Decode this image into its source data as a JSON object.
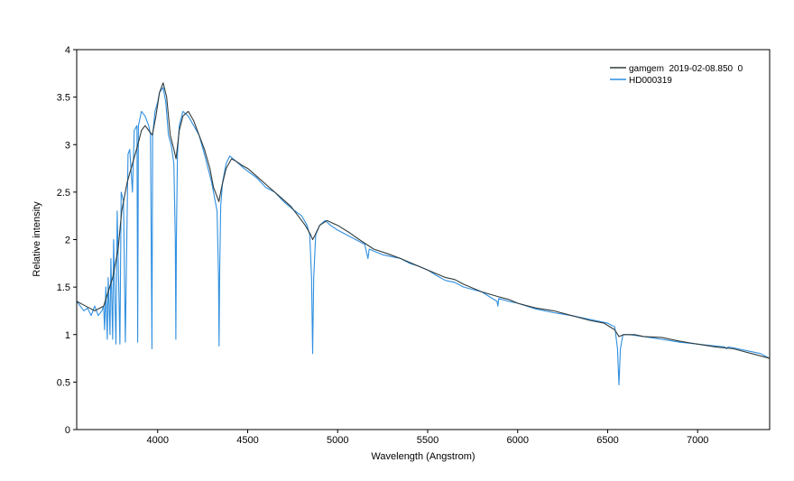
{
  "chart_data": {
    "type": "line",
    "xlabel": "Wavelength (Angstrom)",
    "ylabel": "Relative intensity",
    "xlim": [
      3550,
      7400
    ],
    "ylim": [
      0,
      4
    ],
    "x_ticks": [
      4000,
      4500,
      5000,
      5500,
      6000,
      6500,
      7000
    ],
    "x_tick_labels": [
      "4000",
      "4500",
      "5000",
      "5500",
      "6000",
      "6500",
      "7000"
    ],
    "y_ticks": [
      0,
      0.5,
      1,
      1.5,
      2,
      2.5,
      3,
      3.5,
      4
    ],
    "y_tick_labels": [
      "0",
      "0.5",
      "1",
      "1.5",
      "2",
      "2.5",
      "3",
      "3.5",
      "4"
    ],
    "grid": false,
    "legend_position": "top-right",
    "series": [
      {
        "name": "gamgem  2019-02-08.850  0",
        "color": "#2f3b3b",
        "x": [
          3550,
          3600,
          3650,
          3700,
          3750,
          3780,
          3800,
          3830,
          3860,
          3890,
          3910,
          3930,
          3950,
          3970,
          3990,
          4010,
          4030,
          4050,
          4070,
          4090,
          4102,
          4120,
          4140,
          4170,
          4200,
          4230,
          4260,
          4290,
          4310,
          4330,
          4340,
          4355,
          4380,
          4410,
          4440,
          4470,
          4500,
          4560,
          4620,
          4680,
          4740,
          4780,
          4820,
          4850,
          4861,
          4875,
          4900,
          4940,
          5000,
          5060,
          5120,
          5200,
          5280,
          5350,
          5400,
          5500,
          5600,
          5650,
          5700,
          5800,
          5890,
          5950,
          6000,
          6100,
          6200,
          6300,
          6400,
          6480,
          6540,
          6563,
          6590,
          6650,
          6700,
          6800,
          6900,
          7000,
          7100,
          7200,
          7300,
          7400
        ],
        "y": [
          1.35,
          1.3,
          1.25,
          1.3,
          1.6,
          1.9,
          2.3,
          2.6,
          2.8,
          3.0,
          3.15,
          3.2,
          3.15,
          3.1,
          3.3,
          3.55,
          3.65,
          3.5,
          3.1,
          2.95,
          2.85,
          3.15,
          3.3,
          3.35,
          3.25,
          3.1,
          2.95,
          2.75,
          2.55,
          2.45,
          2.4,
          2.55,
          2.75,
          2.85,
          2.82,
          2.78,
          2.75,
          2.65,
          2.55,
          2.45,
          2.35,
          2.25,
          2.15,
          2.05,
          2.0,
          2.05,
          2.15,
          2.2,
          2.15,
          2.08,
          2.0,
          1.9,
          1.85,
          1.8,
          1.76,
          1.68,
          1.6,
          1.58,
          1.53,
          1.45,
          1.4,
          1.37,
          1.33,
          1.28,
          1.25,
          1.2,
          1.15,
          1.12,
          1.05,
          0.98,
          1.0,
          1.0,
          0.98,
          0.97,
          0.93,
          0.9,
          0.87,
          0.85,
          0.8,
          0.75
        ]
      },
      {
        "name": "HD000319",
        "color": "#2f8fe0",
        "x": [
          3550,
          3570,
          3590,
          3610,
          3630,
          3650,
          3670,
          3690,
          3700,
          3705,
          3712,
          3720,
          3725,
          3735,
          3740,
          3750,
          3755,
          3768,
          3775,
          3790,
          3797,
          3810,
          3820,
          3835,
          3845,
          3860,
          3870,
          3885,
          3889,
          3893,
          3910,
          3930,
          3950,
          3960,
          3968,
          3972,
          3985,
          4000,
          4010,
          4030,
          4045,
          4060,
          4075,
          4090,
          4098,
          4101,
          4104,
          4110,
          4120,
          4140,
          4170,
          4200,
          4230,
          4260,
          4280,
          4300,
          4315,
          4330,
          4338,
          4341,
          4344,
          4350,
          4360,
          4380,
          4400,
          4420,
          4450,
          4480,
          4500,
          4550,
          4600,
          4650,
          4700,
          4750,
          4800,
          4830,
          4845,
          4855,
          4861,
          4867,
          4878,
          4900,
          4930,
          4960,
          5000,
          5050,
          5100,
          5150,
          5168,
          5175,
          5200,
          5250,
          5300,
          5350,
          5400,
          5450,
          5500,
          5550,
          5600,
          5650,
          5700,
          5800,
          5885,
          5890,
          5895,
          5950,
          6000,
          6100,
          6200,
          6300,
          6400,
          6500,
          6540,
          6555,
          6563,
          6571,
          6585,
          6620,
          6700,
          6800,
          6900,
          7000,
          7100,
          7150,
          7160,
          7170,
          7200,
          7300,
          7350,
          7400
        ],
        "y": [
          1.35,
          1.3,
          1.25,
          1.28,
          1.2,
          1.3,
          1.2,
          1.25,
          1.3,
          1.05,
          1.5,
          0.95,
          1.6,
          1.0,
          1.8,
          0.95,
          2.0,
          0.9,
          2.3,
          0.9,
          2.5,
          2.4,
          0.92,
          2.9,
          2.95,
          2.5,
          3.15,
          3.2,
          0.92,
          3.2,
          3.35,
          3.3,
          3.2,
          3.1,
          0.85,
          3.1,
          3.35,
          3.45,
          3.55,
          3.6,
          3.45,
          3.1,
          3.0,
          2.8,
          2.0,
          0.95,
          2.0,
          2.9,
          3.2,
          3.35,
          3.3,
          3.2,
          3.1,
          2.9,
          2.75,
          2.6,
          2.45,
          2.3,
          1.6,
          0.88,
          1.6,
          2.35,
          2.6,
          2.8,
          2.88,
          2.85,
          2.8,
          2.75,
          2.72,
          2.65,
          2.55,
          2.5,
          2.4,
          2.32,
          2.25,
          2.15,
          2.05,
          1.6,
          0.8,
          1.6,
          2.05,
          2.15,
          2.2,
          2.15,
          2.1,
          2.05,
          2.0,
          1.95,
          1.8,
          1.9,
          1.88,
          1.84,
          1.82,
          1.8,
          1.75,
          1.72,
          1.68,
          1.62,
          1.57,
          1.55,
          1.5,
          1.45,
          1.35,
          1.3,
          1.38,
          1.35,
          1.33,
          1.27,
          1.23,
          1.2,
          1.16,
          1.12,
          1.08,
          0.85,
          0.47,
          0.85,
          1.0,
          1.0,
          0.98,
          0.95,
          0.92,
          0.9,
          0.88,
          0.87,
          0.85,
          0.87,
          0.86,
          0.82,
          0.8,
          0.75
        ]
      }
    ]
  }
}
